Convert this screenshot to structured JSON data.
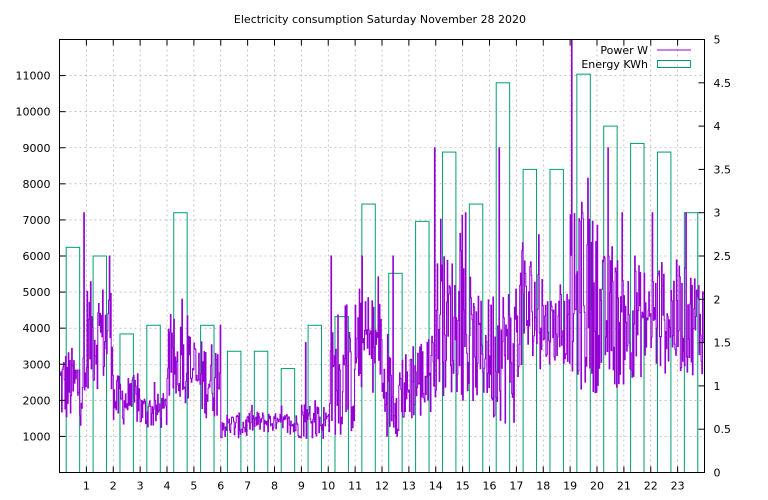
{
  "chart_data": {
    "type": "bar",
    "title": "Electricity consumption Saturday November 28 2020",
    "legend_position": "top-right",
    "grid": true,
    "x": {
      "range": [
        0,
        24
      ],
      "ticks": [
        1,
        2,
        3,
        4,
        5,
        6,
        7,
        8,
        9,
        10,
        11,
        12,
        13,
        14,
        15,
        16,
        17,
        18,
        19,
        20,
        21,
        22,
        23
      ]
    },
    "y_left": {
      "range": [
        0,
        12000
      ],
      "ticks": [
        1000,
        2000,
        3000,
        4000,
        5000,
        6000,
        7000,
        8000,
        9000,
        10000,
        11000
      ]
    },
    "y_right": {
      "range": [
        0,
        5
      ],
      "ticks": [
        0,
        0.5,
        1,
        1.5,
        2,
        2.5,
        3,
        3.5,
        4,
        4.5,
        5
      ]
    },
    "series": [
      {
        "name": "Energy KWh",
        "type": "bar",
        "axis": "right",
        "color": "#009e73",
        "hours": [
          0,
          1,
          2,
          3,
          4,
          5,
          6,
          7,
          8,
          9,
          10,
          11,
          12,
          13,
          14,
          15,
          16,
          17,
          18,
          19,
          20,
          21,
          22,
          23
        ],
        "values": [
          2.6,
          2.5,
          1.6,
          1.7,
          3.0,
          1.7,
          1.4,
          1.4,
          1.2,
          1.7,
          1.8,
          3.1,
          2.3,
          2.9,
          3.7,
          3.1,
          4.5,
          3.5,
          3.5,
          4.6,
          4.0,
          3.8,
          3.7,
          3.0
        ]
      },
      {
        "name": "Power W",
        "type": "line",
        "axis": "left",
        "color": "#9400d3",
        "hourly_level": [
          2400,
          3800,
          2000,
          1700,
          2900,
          2600,
          1300,
          1400,
          1300,
          1400,
          2500,
          3500,
          2200,
          2600,
          4100,
          3400,
          3300,
          4400,
          4000,
          4700,
          4200,
          4200,
          4300,
          4200
        ],
        "hourly_spread": [
          1100,
          1500,
          700,
          500,
          1000,
          1100,
          350,
          300,
          350,
          500,
          1500,
          1300,
          1200,
          1200,
          2000,
          1500,
          2000,
          1800,
          1000,
          2500,
          1900,
          1600,
          1600,
          1500
        ],
        "peaks": [
          {
            "x": 0.9,
            "y": 7200
          },
          {
            "x": 1.85,
            "y": 6000
          },
          {
            "x": 4.55,
            "y": 4800
          },
          {
            "x": 9.15,
            "y": 3600
          },
          {
            "x": 10.1,
            "y": 6000
          },
          {
            "x": 11.25,
            "y": 6000
          },
          {
            "x": 12.4,
            "y": 6000
          },
          {
            "x": 13.95,
            "y": 9000
          },
          {
            "x": 15.1,
            "y": 7200
          },
          {
            "x": 16.35,
            "y": 9000
          },
          {
            "x": 19.05,
            "y": 12000
          },
          {
            "x": 19.45,
            "y": 7200
          },
          {
            "x": 20.4,
            "y": 9000
          },
          {
            "x": 21.4,
            "y": 6000
          },
          {
            "x": 22.05,
            "y": 7200
          },
          {
            "x": 23.3,
            "y": 7200
          }
        ]
      }
    ]
  }
}
